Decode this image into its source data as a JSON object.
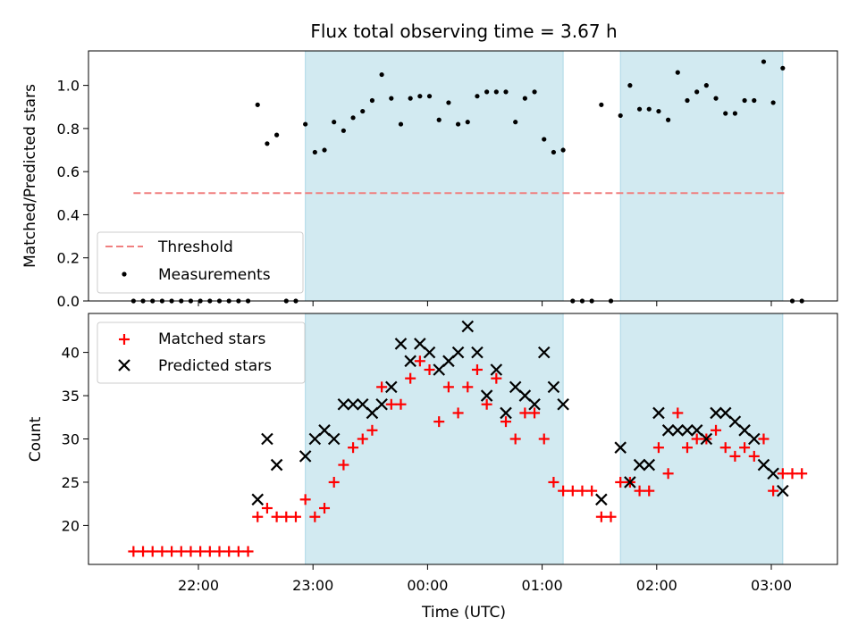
{
  "title": "Flux total observing time = 3.67 h",
  "colors": {
    "threshold": "#f08080",
    "measurement": "#000000",
    "matched": "#ff0000",
    "predicted": "#000000",
    "shade": "#add8e6"
  },
  "chart_data": [
    {
      "type": "scatter",
      "ylabel": "Matched/Predicted stars",
      "ylim": [
        0,
        1.16
      ],
      "yticks": [
        0.0,
        0.2,
        0.4,
        0.6,
        0.8,
        1.0
      ],
      "ytick_labels": [
        "0.0",
        "0.2",
        "0.4",
        "0.6",
        "0.8",
        "1.0"
      ],
      "legend_placement": "lower-left",
      "threshold": {
        "name": "Threshold",
        "value": 0.5,
        "x_start": "21:26",
        "x_end": "03:07"
      },
      "series": [
        {
          "name": "Measurements",
          "x": [
            "21:26",
            "21:31",
            "21:36",
            "21:41",
            "21:46",
            "21:51",
            "21:56",
            "22:01",
            "22:06",
            "22:11",
            "22:16",
            "22:21",
            "22:26",
            "22:31",
            "22:36",
            "22:41",
            "22:46",
            "22:51",
            "22:56",
            "23:01",
            "23:06",
            "23:11",
            "23:16",
            "23:21",
            "23:26",
            "23:31",
            "23:36",
            "23:41",
            "23:46",
            "23:51",
            "23:56",
            "00:01",
            "00:06",
            "00:11",
            "00:16",
            "00:21",
            "00:26",
            "00:31",
            "00:36",
            "00:41",
            "00:46",
            "00:51",
            "00:56",
            "01:01",
            "01:06",
            "01:11",
            "01:16",
            "01:21",
            "01:26",
            "01:31",
            "01:36",
            "01:41",
            "01:46",
            "01:51",
            "01:56",
            "02:01",
            "02:06",
            "02:11",
            "02:16",
            "02:21",
            "02:26",
            "02:31",
            "02:36",
            "02:41",
            "02:46",
            "02:51",
            "02:56",
            "03:01",
            "03:06",
            "03:11",
            "03:16"
          ],
          "y": [
            0,
            0,
            0,
            0,
            0,
            0,
            0,
            0,
            0,
            0,
            0,
            0,
            0,
            0.91,
            0.73,
            0.77,
            0,
            0,
            0.82,
            0.69,
            0.7,
            0.83,
            0.79,
            0.85,
            0.88,
            0.93,
            1.05,
            0.94,
            0.82,
            0.94,
            0.95,
            0.95,
            0.84,
            0.92,
            0.82,
            0.83,
            0.95,
            0.97,
            0.97,
            0.97,
            0.83,
            0.94,
            0.97,
            0.75,
            0.69,
            0.7,
            0,
            0,
            0,
            0.91,
            0,
            0.86,
            1.0,
            0.89,
            0.89,
            0.88,
            0.84,
            1.06,
            0.93,
            0.97,
            1.0,
            0.94,
            0.87,
            0.87,
            0.93,
            0.93,
            1.11,
            0.92,
            1.08,
            0,
            0
          ]
        }
      ]
    },
    {
      "type": "scatter",
      "xlabel": "Time (UTC)",
      "ylabel": "Count",
      "ylim": [
        15.5,
        44.5
      ],
      "yticks": [
        20,
        25,
        30,
        35,
        40
      ],
      "ytick_labels": [
        "20",
        "25",
        "30",
        "35",
        "40"
      ],
      "legend_placement": "upper-left",
      "series": [
        {
          "name": "Matched stars",
          "x": [
            "21:26",
            "21:31",
            "21:36",
            "21:41",
            "21:46",
            "21:51",
            "21:56",
            "22:01",
            "22:06",
            "22:11",
            "22:16",
            "22:21",
            "22:26",
            "22:31",
            "22:36",
            "22:41",
            "22:46",
            "22:51",
            "22:56",
            "23:01",
            "23:06",
            "23:11",
            "23:16",
            "23:21",
            "23:26",
            "23:31",
            "23:36",
            "23:41",
            "23:46",
            "23:51",
            "23:56",
            "00:01",
            "00:06",
            "00:11",
            "00:16",
            "00:21",
            "00:26",
            "00:31",
            "00:36",
            "00:41",
            "00:46",
            "00:51",
            "00:56",
            "01:01",
            "01:06",
            "01:11",
            "01:16",
            "01:21",
            "01:26",
            "01:31",
            "01:36",
            "01:41",
            "01:46",
            "01:51",
            "01:56",
            "02:01",
            "02:06",
            "02:11",
            "02:16",
            "02:21",
            "02:26",
            "02:31",
            "02:36",
            "02:41",
            "02:46",
            "02:51",
            "02:56",
            "03:01",
            "03:06",
            "03:11",
            "03:16"
          ],
          "y": [
            17,
            17,
            17,
            17,
            17,
            17,
            17,
            17,
            17,
            17,
            17,
            17,
            17,
            21,
            22,
            21,
            21,
            21,
            23,
            21,
            22,
            25,
            27,
            29,
            30,
            31,
            36,
            34,
            34,
            37,
            39,
            38,
            32,
            36,
            33,
            36,
            38,
            34,
            37,
            32,
            30,
            33,
            33,
            30,
            25,
            24,
            24,
            24,
            24,
            21,
            21,
            25,
            25,
            24,
            24,
            29,
            26,
            33,
            29,
            30,
            30,
            31,
            29,
            28,
            29,
            28,
            30,
            24,
            26,
            26,
            26
          ]
        },
        {
          "name": "Predicted stars",
          "x": [
            "22:31",
            "22:36",
            "22:41",
            "22:56",
            "23:01",
            "23:06",
            "23:11",
            "23:16",
            "23:21",
            "23:26",
            "23:31",
            "23:36",
            "23:41",
            "23:46",
            "23:51",
            "23:56",
            "00:01",
            "00:06",
            "00:11",
            "00:16",
            "00:21",
            "00:26",
            "00:31",
            "00:36",
            "00:41",
            "00:46",
            "00:51",
            "00:56",
            "01:01",
            "01:06",
            "01:11",
            "01:31",
            "01:41",
            "01:46",
            "01:51",
            "01:56",
            "02:01",
            "02:06",
            "02:11",
            "02:16",
            "02:21",
            "02:26",
            "02:31",
            "02:36",
            "02:41",
            "02:46",
            "02:51",
            "02:56",
            "03:01",
            "03:06"
          ],
          "y": [
            23,
            30,
            27,
            28,
            30,
            31,
            30,
            34,
            34,
            34,
            33,
            34,
            36,
            41,
            39,
            41,
            40,
            38,
            39,
            40,
            43,
            40,
            35,
            38,
            33,
            36,
            35,
            34,
            40,
            36,
            34,
            23,
            29,
            25,
            27,
            27,
            33,
            31,
            31,
            31,
            31,
            30,
            33,
            33,
            32,
            31,
            30,
            27,
            26,
            24
          ]
        }
      ]
    }
  ],
  "xaxis": {
    "tick_labels": [
      "22:00",
      "23:00",
      "00:00",
      "01:00",
      "02:00",
      "03:00"
    ]
  },
  "shaded_regions": [
    {
      "start": "22:56",
      "end": "01:11"
    },
    {
      "start": "01:41",
      "end": "03:06"
    }
  ]
}
